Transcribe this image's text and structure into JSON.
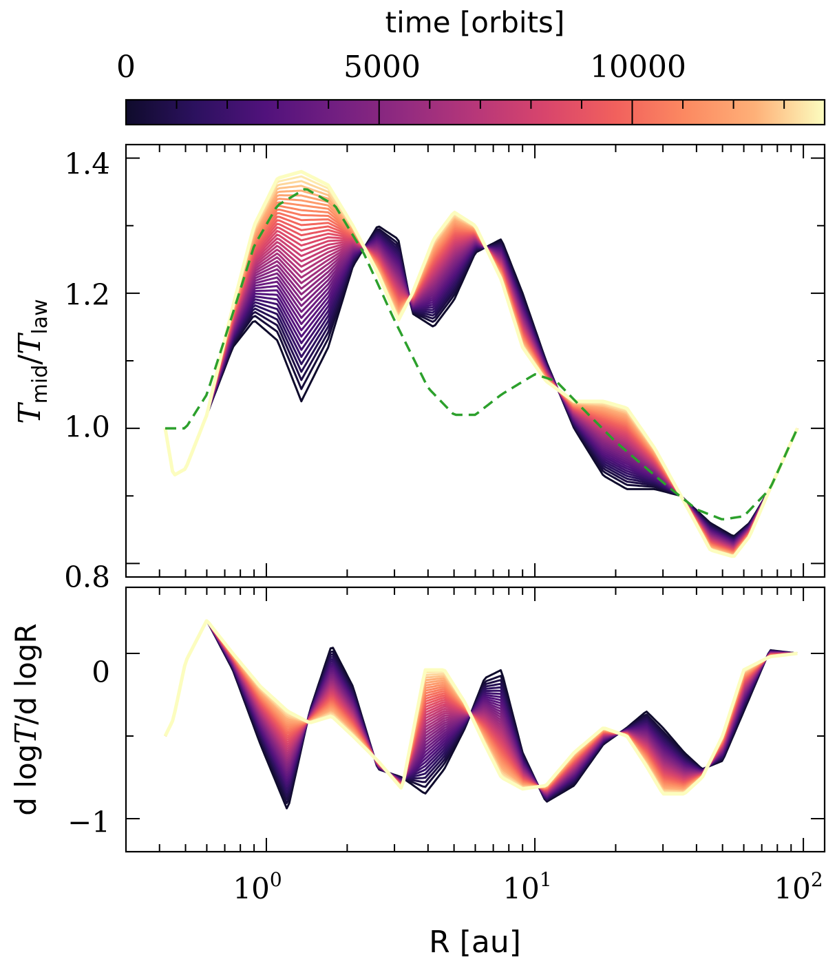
{
  "colorbar": {
    "label": "time [orbits]",
    "ticks": [
      "0",
      "5000",
      "10000"
    ],
    "tick_values": [
      0,
      5000,
      10000
    ],
    "range": [
      0,
      13800
    ],
    "colormap": "magma",
    "colormap_stops": [
      "#0f0b2c",
      "#2c115f",
      "#51127c",
      "#721f81",
      "#932b80",
      "#b73779",
      "#d8456c",
      "#f1605d",
      "#fc8961",
      "#feb078",
      "#fcfdbf"
    ]
  },
  "chart_data": [
    {
      "id": "top",
      "type": "line",
      "title": "",
      "xlabel": "",
      "ylabel_main": "T",
      "ylabel_sub1": "mid",
      "ylabel_slash": "/",
      "ylabel_sub2": "law",
      "xscale": "log",
      "xlim": [
        0.3,
        120
      ],
      "ylim": [
        0.78,
        1.42
      ],
      "yticks": [
        0.8,
        1.0,
        1.2,
        1.4
      ],
      "ytick_labels": [
        "0.8",
        "1.0",
        "1.2",
        "1.4"
      ],
      "series_early": {
        "name": "t = 0",
        "x": [
          0.42,
          0.45,
          0.5,
          0.6,
          0.75,
          0.9,
          1.1,
          1.35,
          1.7,
          2.1,
          2.6,
          3.1,
          3.5,
          4.2,
          5.0,
          6.0,
          7.5,
          9.0,
          11,
          14,
          18,
          22,
          28,
          35,
          45,
          55,
          63,
          75,
          95
        ],
        "y": [
          1.0,
          0.93,
          0.94,
          1.02,
          1.12,
          1.16,
          1.13,
          1.04,
          1.12,
          1.24,
          1.3,
          1.28,
          1.17,
          1.15,
          1.19,
          1.26,
          1.28,
          1.2,
          1.1,
          1.0,
          0.93,
          0.91,
          0.91,
          0.9,
          0.86,
          0.84,
          0.86,
          0.91,
          1.0
        ]
      },
      "series_late": {
        "name": "t = 13800",
        "x": [
          0.42,
          0.45,
          0.5,
          0.6,
          0.75,
          0.9,
          1.1,
          1.35,
          1.7,
          2.1,
          2.6,
          3.1,
          3.5,
          4.2,
          5.0,
          6.0,
          7.5,
          9.0,
          11,
          14,
          18,
          22,
          28,
          35,
          45,
          55,
          63,
          75,
          95
        ],
        "y": [
          1.0,
          0.93,
          0.94,
          1.02,
          1.18,
          1.3,
          1.37,
          1.38,
          1.36,
          1.3,
          1.23,
          1.16,
          1.2,
          1.28,
          1.32,
          1.3,
          1.22,
          1.12,
          1.07,
          1.04,
          1.04,
          1.03,
          0.97,
          0.9,
          0.82,
          0.81,
          0.84,
          0.91,
          1.0
        ]
      },
      "reference": {
        "name": "reference (dashed)",
        "color": "#2ca02c",
        "x": [
          0.42,
          0.5,
          0.6,
          0.75,
          0.9,
          1.1,
          1.4,
          1.8,
          2.3,
          3.0,
          4.0,
          5.0,
          6.0,
          7.5,
          10,
          12,
          15,
          20,
          30,
          40,
          50,
          60,
          75,
          95
        ],
        "y": [
          1.0,
          1.0,
          1.05,
          1.17,
          1.27,
          1.33,
          1.355,
          1.33,
          1.26,
          1.16,
          1.06,
          1.02,
          1.02,
          1.05,
          1.08,
          1.07,
          1.03,
          0.98,
          0.92,
          0.88,
          0.865,
          0.87,
          0.91,
          1.0
        ]
      },
      "n_curves": 40
    },
    {
      "id": "bottom",
      "type": "line",
      "xlabel": "R [au]",
      "ylabel": "d logT/d logR",
      "ylabel_prefix": "d log",
      "ylabel_T": "T",
      "ylabel_suffix": "/d logR",
      "xscale": "log",
      "xlim": [
        0.3,
        120
      ],
      "ylim": [
        -1.2,
        0.4
      ],
      "yticks": [
        -1,
        0
      ],
      "ytick_labels": [
        "−1",
        "0"
      ],
      "xticks": [
        1,
        10,
        100
      ],
      "xtick_base": "10",
      "xtick_exps": [
        "0",
        "1",
        "2"
      ],
      "series_early": {
        "name": "t = 0",
        "x": [
          0.42,
          0.45,
          0.5,
          0.6,
          0.75,
          0.95,
          1.2,
          1.45,
          1.75,
          2.1,
          2.6,
          3.2,
          3.9,
          4.6,
          5.5,
          6.5,
          7.5,
          9.0,
          11,
          14,
          18,
          22,
          26,
          30,
          36,
          42,
          50,
          60,
          75,
          95
        ],
        "y": [
          -0.5,
          -0.4,
          -0.05,
          0.2,
          -0.1,
          -0.55,
          -0.95,
          -0.35,
          0.05,
          -0.2,
          -0.7,
          -0.75,
          -0.85,
          -0.7,
          -0.45,
          -0.15,
          -0.1,
          -0.6,
          -0.9,
          -0.8,
          -0.55,
          -0.45,
          -0.35,
          -0.45,
          -0.6,
          -0.7,
          -0.65,
          -0.35,
          0.02,
          0.0
        ]
      },
      "series_late": {
        "name": "t = 13800",
        "x": [
          0.42,
          0.45,
          0.5,
          0.6,
          0.75,
          0.95,
          1.2,
          1.45,
          1.75,
          2.1,
          2.6,
          3.2,
          3.9,
          4.6,
          5.5,
          6.5,
          7.5,
          9.0,
          11,
          14,
          18,
          22,
          26,
          30,
          36,
          42,
          50,
          60,
          75,
          95
        ],
        "y": [
          -0.5,
          -0.4,
          -0.05,
          0.2,
          0.0,
          -0.2,
          -0.35,
          -0.42,
          -0.38,
          -0.5,
          -0.65,
          -0.82,
          -0.1,
          -0.1,
          -0.3,
          -0.55,
          -0.75,
          -0.82,
          -0.8,
          -0.6,
          -0.45,
          -0.5,
          -0.68,
          -0.85,
          -0.85,
          -0.75,
          -0.5,
          -0.1,
          -0.02,
          0.0
        ]
      },
      "n_curves": 40
    }
  ]
}
